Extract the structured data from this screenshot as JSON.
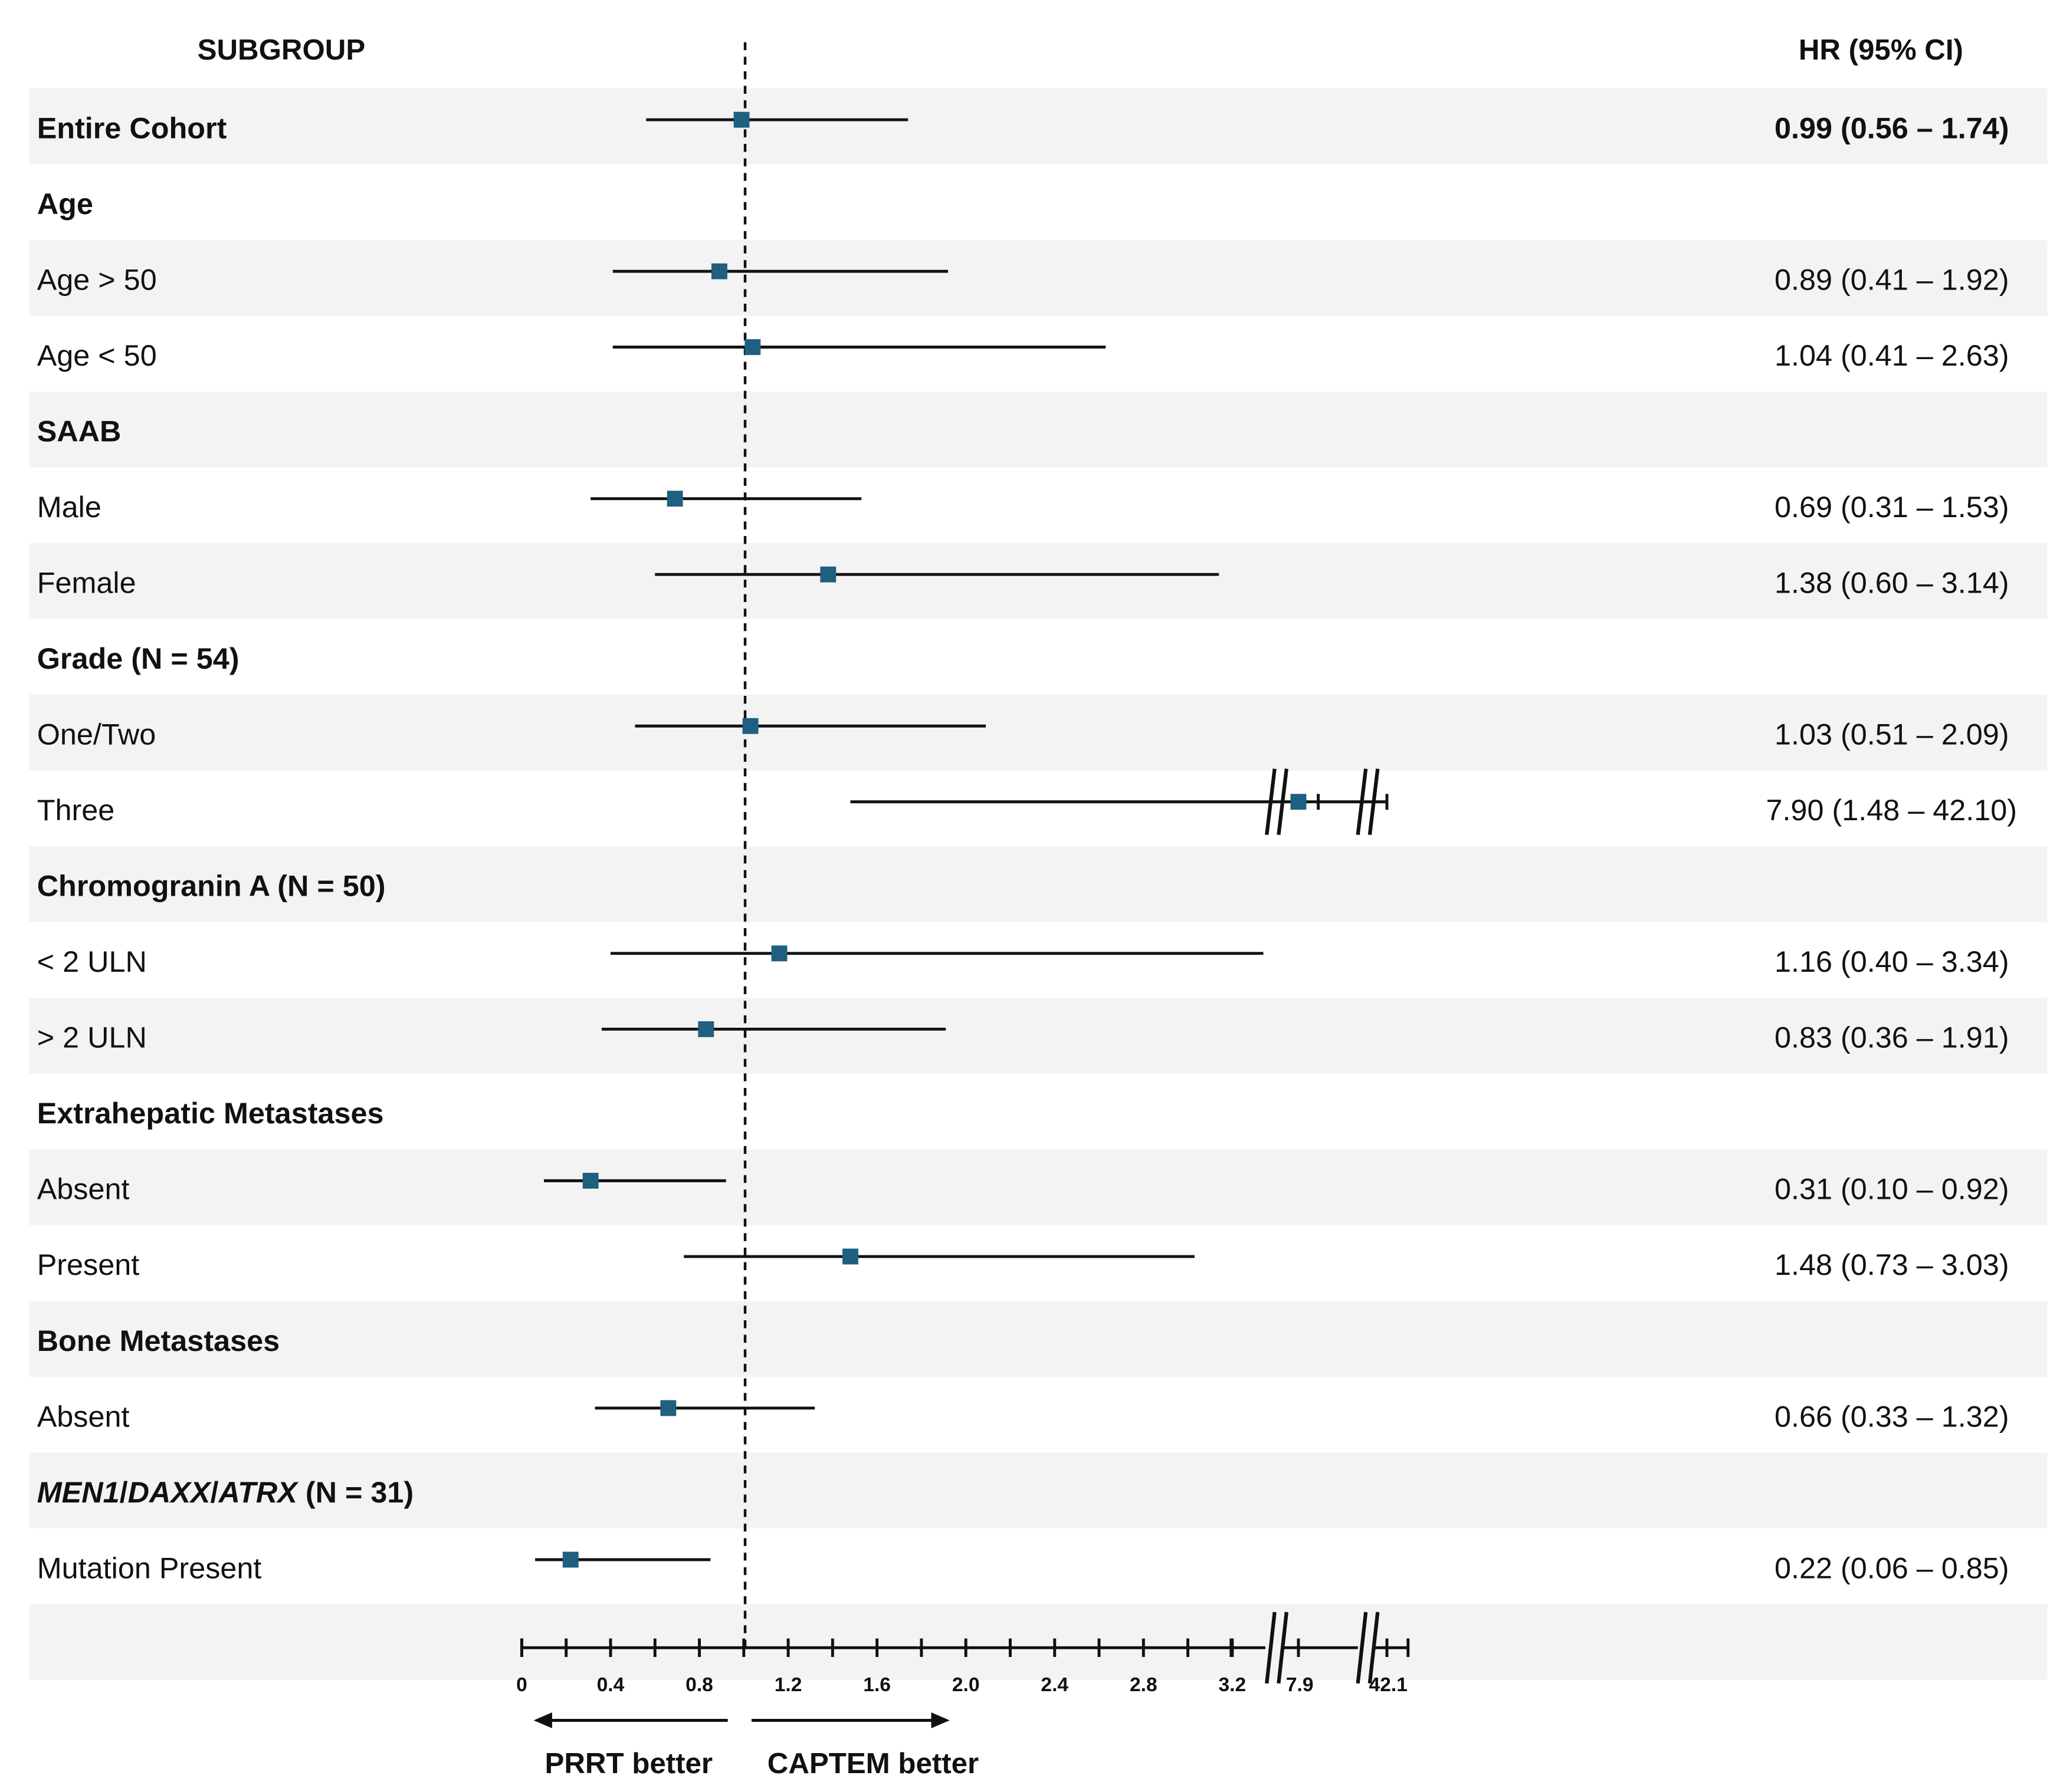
{
  "chart_data": {
    "type": "forest",
    "subgroup_header": "SUBGROUP",
    "hr_header": "HR (95% CI)",
    "reference_line": 1.0,
    "rows": [
      {
        "label": "Entire Cohort",
        "heading": true,
        "hr": 0.99,
        "lo": 0.56,
        "hi": 1.74,
        "text": "0.99 (0.56 – 1.74)"
      },
      {
        "label": "Age",
        "heading": true
      },
      {
        "label": "Age > 50",
        "hr": 0.89,
        "lo": 0.41,
        "hi": 1.92,
        "text": "0.89 (0.41 – 1.92)"
      },
      {
        "label": "Age < 50",
        "hr": 1.04,
        "lo": 0.41,
        "hi": 2.63,
        "text": "1.04 (0.41 – 2.63)"
      },
      {
        "label": "SAAB",
        "heading": true
      },
      {
        "label": "Male",
        "hr": 0.69,
        "lo": 0.31,
        "hi": 1.53,
        "text": "0.69 (0.31 – 1.53)"
      },
      {
        "label": "Female",
        "hr": 1.38,
        "lo": 0.6,
        "hi": 3.14,
        "text": "1.38 (0.60 – 3.14)"
      },
      {
        "label": "Grade (N = 54)",
        "heading": true
      },
      {
        "label": "One/Two",
        "hr": 1.03,
        "lo": 0.51,
        "hi": 2.09,
        "text": "1.03 (0.51 – 2.09)"
      },
      {
        "label": "Three",
        "hr": 7.9,
        "lo": 1.48,
        "hi": 42.1,
        "text": "7.90 (1.48 – 42.10)"
      },
      {
        "label": "Chromogranin A (N = 50)",
        "heading": true
      },
      {
        "label": "< 2 ULN",
        "hr": 1.16,
        "lo": 0.4,
        "hi": 3.34,
        "text": "1.16 (0.40 – 3.34)"
      },
      {
        "label": "> 2 ULN",
        "hr": 0.83,
        "lo": 0.36,
        "hi": 1.91,
        "text": "0.83 (0.36 – 1.91)"
      },
      {
        "label": "Extrahepatic Metastases",
        "heading": true
      },
      {
        "label": "Absent",
        "hr": 0.31,
        "lo": 0.1,
        "hi": 0.92,
        "text": "0.31 (0.10 – 0.92)"
      },
      {
        "label": "Present",
        "hr": 1.48,
        "lo": 0.73,
        "hi": 3.03,
        "text": "1.48 (0.73 – 3.03)"
      },
      {
        "label": "Bone Metastases",
        "heading": true
      },
      {
        "label": "Absent",
        "hr": 0.66,
        "lo": 0.33,
        "hi": 1.32,
        "text": "0.66 (0.33 – 1.32)"
      },
      {
        "label": "MEN1/DAXX/ATRX (N = 31)",
        "heading": true,
        "label_parts": [
          {
            "t": "MEN1",
            "i": true
          },
          {
            "t": "/",
            "i": false
          },
          {
            "t": "DAXX",
            "i": true
          },
          {
            "t": "/",
            "i": false
          },
          {
            "t": "ATRX",
            "i": true
          },
          {
            "t": " (N = 31)",
            "i": false
          }
        ]
      },
      {
        "label": "Mutation Present",
        "hr": 0.22,
        "lo": 0.06,
        "hi": 0.85,
        "text": "0.22 (0.06 – 0.85)"
      }
    ],
    "x_ticks": [
      0,
      0.4,
      0.8,
      1.2,
      1.6,
      2.0,
      2.4,
      2.8,
      3.2
    ],
    "x_tick_labels": [
      "0",
      "0.4",
      "0.8",
      "1.2",
      "1.6",
      "2.0",
      "2.4",
      "2.8",
      "3.2"
    ],
    "break_tick_labels": [
      "7.9",
      "42.1"
    ],
    "break_values": [
      7.9,
      42.1
    ],
    "direction_left": "PRRT better",
    "direction_right": "CAPTEM better",
    "marker_color": "#1f5f7f"
  }
}
